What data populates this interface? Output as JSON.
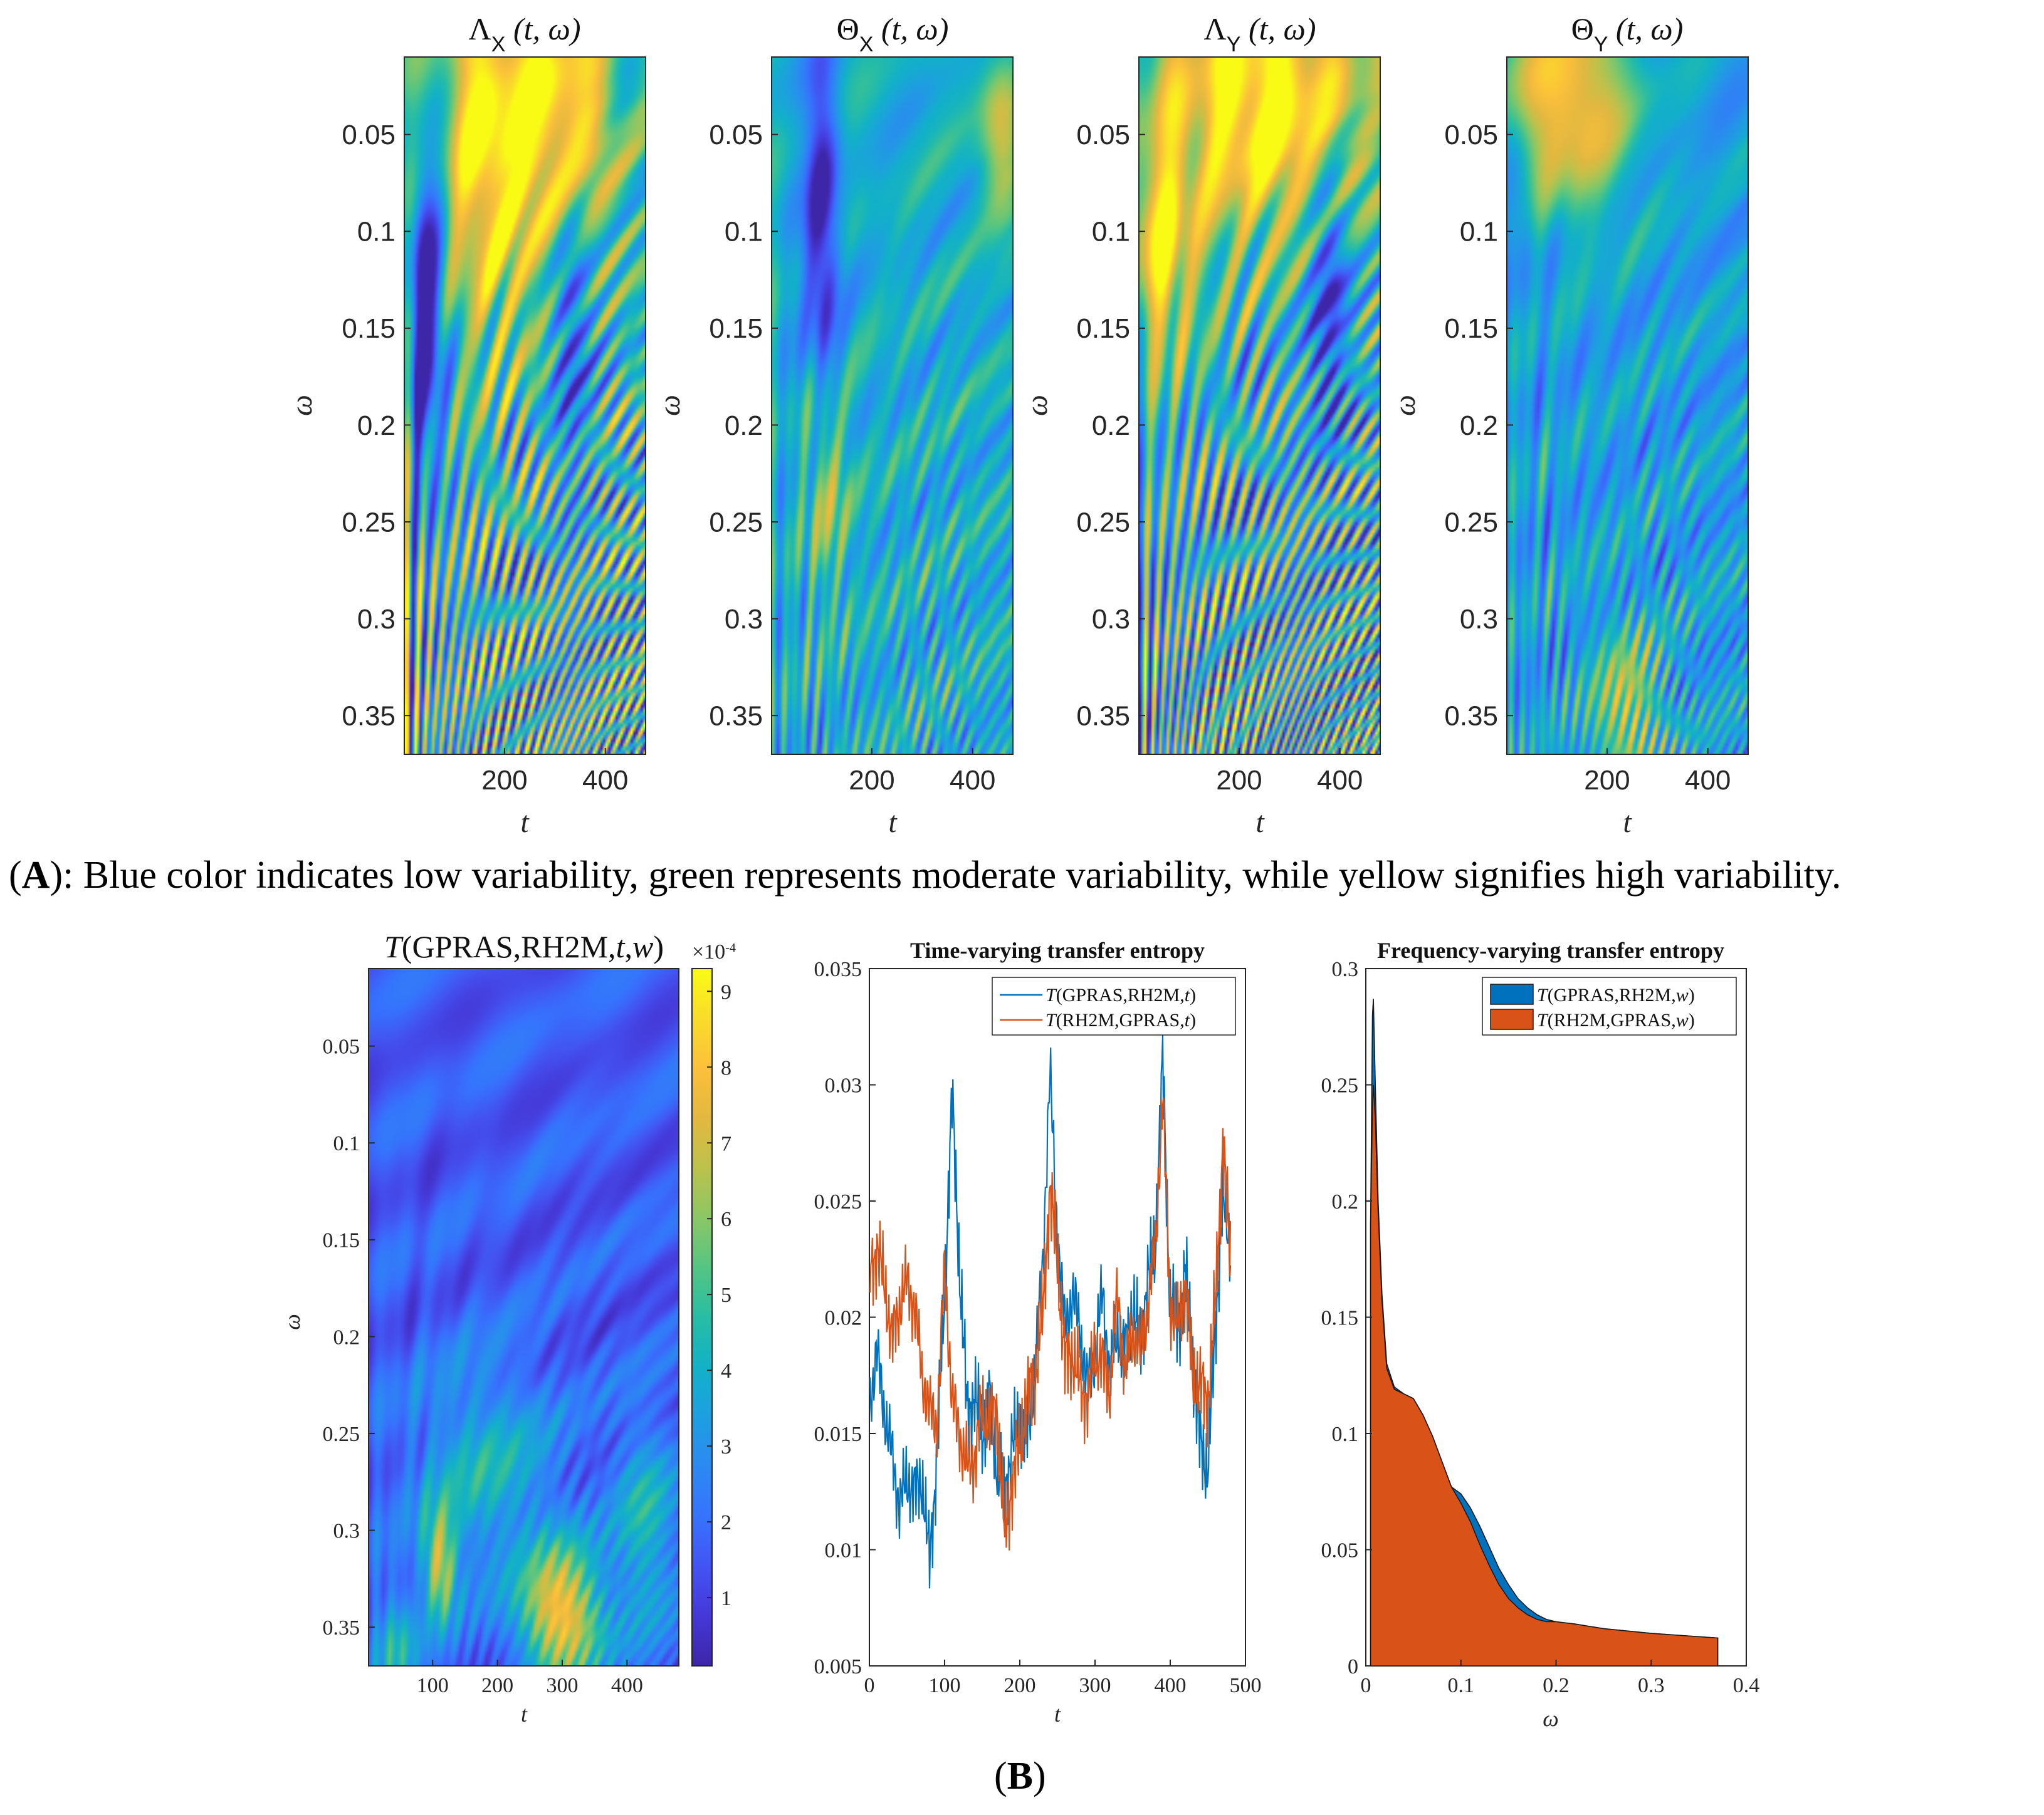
{
  "colormap": [
    "#3e26a8",
    "#4538d7",
    "#4354f2",
    "#3673fd",
    "#2c89f1",
    "#1e9fe0",
    "#12b1c8",
    "#28bda4",
    "#55c583",
    "#8bc765",
    "#bcc24c",
    "#e3b840",
    "#fbc03b",
    "#f9dc2a",
    "#f9fb15"
  ],
  "panel_a": {
    "caption_letter": "A",
    "caption_text": "): Blue color indicates low variability, green represents moderate variability, while yellow signifies high variability."
  },
  "panel_b": {
    "caption_letter": "B"
  },
  "chart_data": [
    {
      "type": "heatmap",
      "title": "Λ_X (t, ω)",
      "title_main": "Λ",
      "title_sub": "X",
      "title_args": " (t, ω)",
      "xlabel": "t",
      "ylabel": "ω",
      "xlim": [
        1,
        480
      ],
      "ylim": [
        0.01,
        0.37
      ],
      "xticks": [
        "200",
        "400"
      ],
      "yticks": [
        "0.05",
        "0.1",
        "0.15",
        "0.2",
        "0.25",
        "0.3",
        "0.35"
      ],
      "pattern": {
        "base": 0.48,
        "bands": 8,
        "band_amp": 0.28,
        "fine_amp": 0.34,
        "blobs": [
          {
            "t": 175,
            "w": 0.05,
            "st": 70,
            "sw": 0.07,
            "a": 0.55
          },
          {
            "t": 330,
            "w": 0.04,
            "st": 60,
            "sw": 0.05,
            "a": 0.5
          },
          {
            "t": 40,
            "w": 0.14,
            "st": 30,
            "sw": 0.06,
            "a": -0.55
          },
          {
            "t": 335,
            "w": 0.14,
            "st": 30,
            "sw": 0.06,
            "a": -0.35
          }
        ]
      }
    },
    {
      "type": "heatmap",
      "title": "Θ_X (t, ω)",
      "title_main": "Θ",
      "title_sub": "X",
      "title_args": " (t, ω)",
      "xlabel": "t",
      "ylabel": "ω",
      "xlim": [
        1,
        480
      ],
      "ylim": [
        0.01,
        0.37
      ],
      "xticks": [
        "200",
        "400"
      ],
      "yticks": [
        "0.05",
        "0.1",
        "0.15",
        "0.2",
        "0.25",
        "0.3",
        "0.35"
      ],
      "pattern": {
        "base": 0.42,
        "bands": 5,
        "band_amp": 0.1,
        "fine_amp": 0.18,
        "blobs": [
          {
            "t": 100,
            "w": 0.1,
            "st": 25,
            "sw": 0.07,
            "a": -0.45
          },
          {
            "t": 110,
            "w": 0.23,
            "st": 30,
            "sw": 0.04,
            "a": 0.3
          },
          {
            "t": 460,
            "w": 0.05,
            "st": 30,
            "sw": 0.03,
            "a": 0.35
          }
        ]
      }
    },
    {
      "type": "heatmap",
      "title": "Λ_Y (t, ω)",
      "title_main": "Λ",
      "title_sub": "Y",
      "title_args": " (t, ω)",
      "xlabel": "t",
      "ylabel": "ω",
      "xlim": [
        1,
        480
      ],
      "ylim": [
        0.01,
        0.37
      ],
      "xticks": [
        "200",
        "400"
      ],
      "yticks": [
        "0.05",
        "0.1",
        "0.15",
        "0.2",
        "0.25",
        "0.3",
        "0.35"
      ],
      "pattern": {
        "base": 0.45,
        "bands": 9,
        "band_amp": 0.3,
        "fine_amp": 0.36,
        "blobs": [
          {
            "t": 250,
            "w": 0.03,
            "st": 150,
            "sw": 0.05,
            "a": 0.6
          },
          {
            "t": 40,
            "w": 0.11,
            "st": 50,
            "sw": 0.04,
            "a": 0.45
          },
          {
            "t": 380,
            "w": 0.13,
            "st": 30,
            "sw": 0.05,
            "a": -0.4
          }
        ]
      }
    },
    {
      "type": "heatmap",
      "title": "Θ_Y (t, ω)",
      "title_main": "Θ",
      "title_sub": "Y",
      "title_args": " (t, ω)",
      "xlabel": "t",
      "ylabel": "ω",
      "xlim": [
        1,
        480
      ],
      "ylim": [
        0.01,
        0.37
      ],
      "xticks": [
        "200",
        "400"
      ],
      "yticks": [
        "0.05",
        "0.1",
        "0.15",
        "0.2",
        "0.25",
        "0.3",
        "0.35"
      ],
      "pattern": {
        "base": 0.36,
        "bands": 6,
        "band_amp": 0.1,
        "fine_amp": 0.2,
        "blobs": [
          {
            "t": 120,
            "w": 0.03,
            "st": 90,
            "sw": 0.04,
            "a": 0.55
          },
          {
            "t": 20,
            "w": 0.08,
            "st": 20,
            "sw": 0.03,
            "a": -0.2
          },
          {
            "t": 240,
            "w": 0.35,
            "st": 50,
            "sw": 0.03,
            "a": 0.35
          }
        ]
      }
    },
    {
      "type": "heatmap",
      "title": "T(GPRAS,RH2M,t,w)",
      "title_T": "T",
      "title_args": "(GPRAS,RH2M,",
      "title_t": "t",
      "title_comma": ",",
      "title_w": "w",
      "title_close": ")",
      "xlabel": "t",
      "ylabel": "ω",
      "xlim": [
        1,
        480
      ],
      "ylim": [
        0.01,
        0.37
      ],
      "xticks": [
        "100",
        "200",
        "300",
        "400"
      ],
      "yticks": [
        "0.05",
        "0.1",
        "0.15",
        "0.2",
        "0.25",
        "0.3",
        "0.35"
      ],
      "colorbar": {
        "min": 0.1,
        "max": 9.3,
        "ticks": [
          "1",
          "2",
          "3",
          "4",
          "5",
          "6",
          "7",
          "8",
          "9"
        ],
        "exponent": "×10",
        "exponent_power": "-4"
      },
      "pattern": {
        "base": 0.16,
        "bands": 6,
        "band_amp": 0.05,
        "fine_amp": 0.08,
        "blobs": [
          {
            "t": 300,
            "w": 0.345,
            "st": 45,
            "sw": 0.025,
            "a": 0.72
          },
          {
            "t": 110,
            "w": 0.32,
            "st": 18,
            "sw": 0.02,
            "a": 0.55
          },
          {
            "t": 180,
            "w": 0.27,
            "st": 80,
            "sw": 0.04,
            "a": 0.28
          },
          {
            "t": 430,
            "w": 0.3,
            "st": 35,
            "sw": 0.04,
            "a": 0.3
          },
          {
            "t": 40,
            "w": 0.36,
            "st": 25,
            "sw": 0.02,
            "a": 0.3
          }
        ]
      }
    },
    {
      "type": "line",
      "title": "Time-varying transfer entropy",
      "xlabel": "t",
      "ylabel": "",
      "xlim": [
        0,
        500
      ],
      "ylim": [
        0.005,
        0.035
      ],
      "xticks": [
        "0",
        "100",
        "200",
        "300",
        "400",
        "500"
      ],
      "yticks": [
        "0.005",
        "0.01",
        "0.015",
        "0.02",
        "0.025",
        "0.03",
        "0.035"
      ],
      "legend_position": "top-right",
      "series": [
        {
          "name": "T(GPRAS,RH2M,t)",
          "name_T": "T",
          "name_args": "(GPRAS,RH2M,",
          "name_var": "t",
          "name_close": ")",
          "color": "#0072bd",
          "anchors_t": [
            1,
            10,
            20,
            30,
            40,
            50,
            60,
            70,
            80,
            90,
            100,
            110,
            120,
            130,
            140,
            150,
            160,
            170,
            180,
            190,
            200,
            210,
            220,
            230,
            240,
            250,
            260,
            270,
            280,
            290,
            300,
            310,
            320,
            330,
            340,
            350,
            360,
            370,
            380,
            390,
            400,
            410,
            420,
            430,
            440,
            450,
            460,
            470,
            480
          ],
          "anchors_v": [
            0.0165,
            0.0185,
            0.016,
            0.014,
            0.012,
            0.013,
            0.0125,
            0.013,
            0.0095,
            0.014,
            0.021,
            0.0295,
            0.022,
            0.016,
            0.0165,
            0.015,
            0.0165,
            0.0135,
            0.0125,
            0.0145,
            0.0155,
            0.015,
            0.0175,
            0.022,
            0.0305,
            0.0235,
            0.0195,
            0.021,
            0.0195,
            0.017,
            0.0185,
            0.021,
            0.0175,
            0.0195,
            0.0185,
            0.0205,
            0.019,
            0.0215,
            0.023,
            0.031,
            0.0205,
            0.0195,
            0.022,
            0.018,
            0.0145,
            0.0135,
            0.0195,
            0.025,
            0.023
          ]
        },
        {
          "name": "T(RH2M,GPRAS,t)",
          "name_T": "T",
          "name_args": "(RH2M,GPRAS,",
          "name_var": "t",
          "name_close": ")",
          "color": "#d95319",
          "anchors_t": [
            1,
            10,
            20,
            30,
            40,
            50,
            60,
            70,
            80,
            90,
            100,
            110,
            120,
            130,
            140,
            150,
            160,
            170,
            180,
            190,
            200,
            210,
            220,
            230,
            240,
            250,
            260,
            270,
            280,
            290,
            300,
            310,
            320,
            330,
            340,
            350,
            360,
            370,
            380,
            390,
            400,
            410,
            420,
            430,
            440,
            450,
            460,
            470,
            480
          ],
          "anchors_v": [
            0.022,
            0.023,
            0.0215,
            0.019,
            0.0205,
            0.0215,
            0.0205,
            0.0175,
            0.016,
            0.0155,
            0.022,
            0.0165,
            0.015,
            0.0135,
            0.014,
            0.016,
            0.0155,
            0.016,
            0.0105,
            0.013,
            0.0145,
            0.0165,
            0.0175,
            0.02,
            0.0255,
            0.0225,
            0.018,
            0.0185,
            0.017,
            0.0165,
            0.0185,
            0.018,
            0.017,
            0.021,
            0.0175,
            0.0195,
            0.0185,
            0.0205,
            0.023,
            0.0295,
            0.0205,
            0.0195,
            0.0215,
            0.0175,
            0.017,
            0.0165,
            0.0205,
            0.0275,
            0.0225
          ]
        }
      ]
    },
    {
      "type": "area",
      "title": "Frequency-varying transfer entropy",
      "xlabel": "ω",
      "ylabel": "",
      "xlim": [
        0,
        0.4
      ],
      "ylim": [
        0,
        0.3
      ],
      "xticks": [
        "0",
        "0.1",
        "0.2",
        "0.3",
        "0.4"
      ],
      "yticks": [
        "0",
        "0.05",
        "0.1",
        "0.15",
        "0.2",
        "0.25",
        "0.3"
      ],
      "legend_position": "top-right",
      "series": [
        {
          "name": "T(GPRAS,RH2M,w)",
          "name_T": "T",
          "name_args": "(GPRAS,RH2M,",
          "name_var": "w",
          "name_close": ")",
          "color": "#0072bd",
          "x": [
            0.005,
            0.007,
            0.008,
            0.01,
            0.013,
            0.017,
            0.022,
            0.03,
            0.04,
            0.05,
            0.06,
            0.07,
            0.08,
            0.09,
            0.1,
            0.11,
            0.12,
            0.13,
            0.14,
            0.15,
            0.16,
            0.17,
            0.18,
            0.19,
            0.2,
            0.22,
            0.25,
            0.3,
            0.37
          ],
          "y": [
            0.19,
            0.28,
            0.287,
            0.25,
            0.2,
            0.16,
            0.13,
            0.12,
            0.117,
            0.115,
            0.108,
            0.099,
            0.088,
            0.077,
            0.074,
            0.068,
            0.06,
            0.051,
            0.042,
            0.035,
            0.029,
            0.025,
            0.022,
            0.02,
            0.019,
            0.018,
            0.016,
            0.014,
            0.012
          ]
        },
        {
          "name": "T(RH2M,GPRAS,w)",
          "name_T": "T",
          "name_args": "(RH2M,GPRAS,",
          "name_var": "w",
          "name_close": ")",
          "color": "#d95319",
          "x": [
            0.005,
            0.007,
            0.008,
            0.01,
            0.013,
            0.017,
            0.022,
            0.03,
            0.04,
            0.05,
            0.06,
            0.07,
            0.08,
            0.09,
            0.1,
            0.11,
            0.12,
            0.13,
            0.14,
            0.15,
            0.16,
            0.17,
            0.18,
            0.19,
            0.2,
            0.22,
            0.25,
            0.3,
            0.37
          ],
          "y": [
            0.19,
            0.24,
            0.25,
            0.235,
            0.195,
            0.157,
            0.128,
            0.119,
            0.117,
            0.115,
            0.108,
            0.099,
            0.088,
            0.077,
            0.07,
            0.062,
            0.052,
            0.043,
            0.035,
            0.029,
            0.025,
            0.022,
            0.02,
            0.019,
            0.019,
            0.018,
            0.016,
            0.014,
            0.012
          ]
        }
      ]
    }
  ]
}
